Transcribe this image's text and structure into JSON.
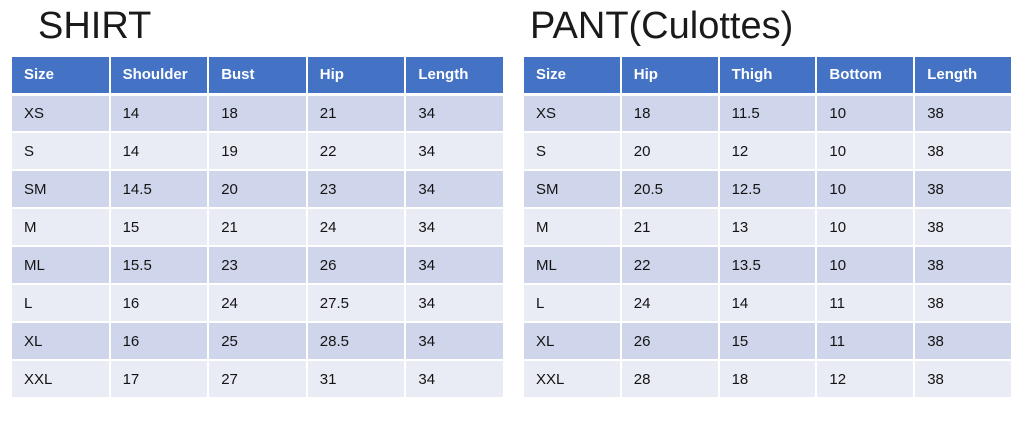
{
  "colors": {
    "header_bg": "#4472C4",
    "header_text": "#FFFFFF",
    "band_dark": "#CFD5EA",
    "band_light": "#E9EBF5",
    "title_text": "#1A1A1A",
    "cell_text": "#141414"
  },
  "shirt": {
    "title": "SHIRT",
    "headers": [
      "Size",
      "Shoulder",
      "Bust",
      "Hip",
      "Length"
    ],
    "rows": [
      [
        "XS",
        "14",
        "18",
        "21",
        "34"
      ],
      [
        "S",
        "14",
        "19",
        "22",
        "34"
      ],
      [
        "SM",
        "14.5",
        "20",
        "23",
        "34"
      ],
      [
        "M",
        "15",
        "21",
        "24",
        "34"
      ],
      [
        "ML",
        "15.5",
        "23",
        "26",
        "34"
      ],
      [
        "L",
        "16",
        "24",
        "27.5",
        "34"
      ],
      [
        "XL",
        "16",
        "25",
        "28.5",
        "34"
      ],
      [
        "XXL",
        "17",
        "27",
        "31",
        "34"
      ]
    ]
  },
  "pant": {
    "title": "PANT(Culottes)",
    "headers": [
      "Size",
      "Hip",
      "Thigh",
      "Bottom",
      "Length"
    ],
    "rows": [
      [
        "XS",
        "18",
        "11.5",
        "10",
        "38"
      ],
      [
        "S",
        "20",
        "12",
        "10",
        "38"
      ],
      [
        "SM",
        "20.5",
        "12.5",
        "10",
        "38"
      ],
      [
        "M",
        "21",
        "13",
        "10",
        "38"
      ],
      [
        "ML",
        "22",
        "13.5",
        "10",
        "38"
      ],
      [
        "L",
        "24",
        "14",
        "11",
        "38"
      ],
      [
        "XL",
        "26",
        "15",
        "11",
        "38"
      ],
      [
        "XXL",
        "28",
        "18",
        "12",
        "38"
      ]
    ]
  }
}
